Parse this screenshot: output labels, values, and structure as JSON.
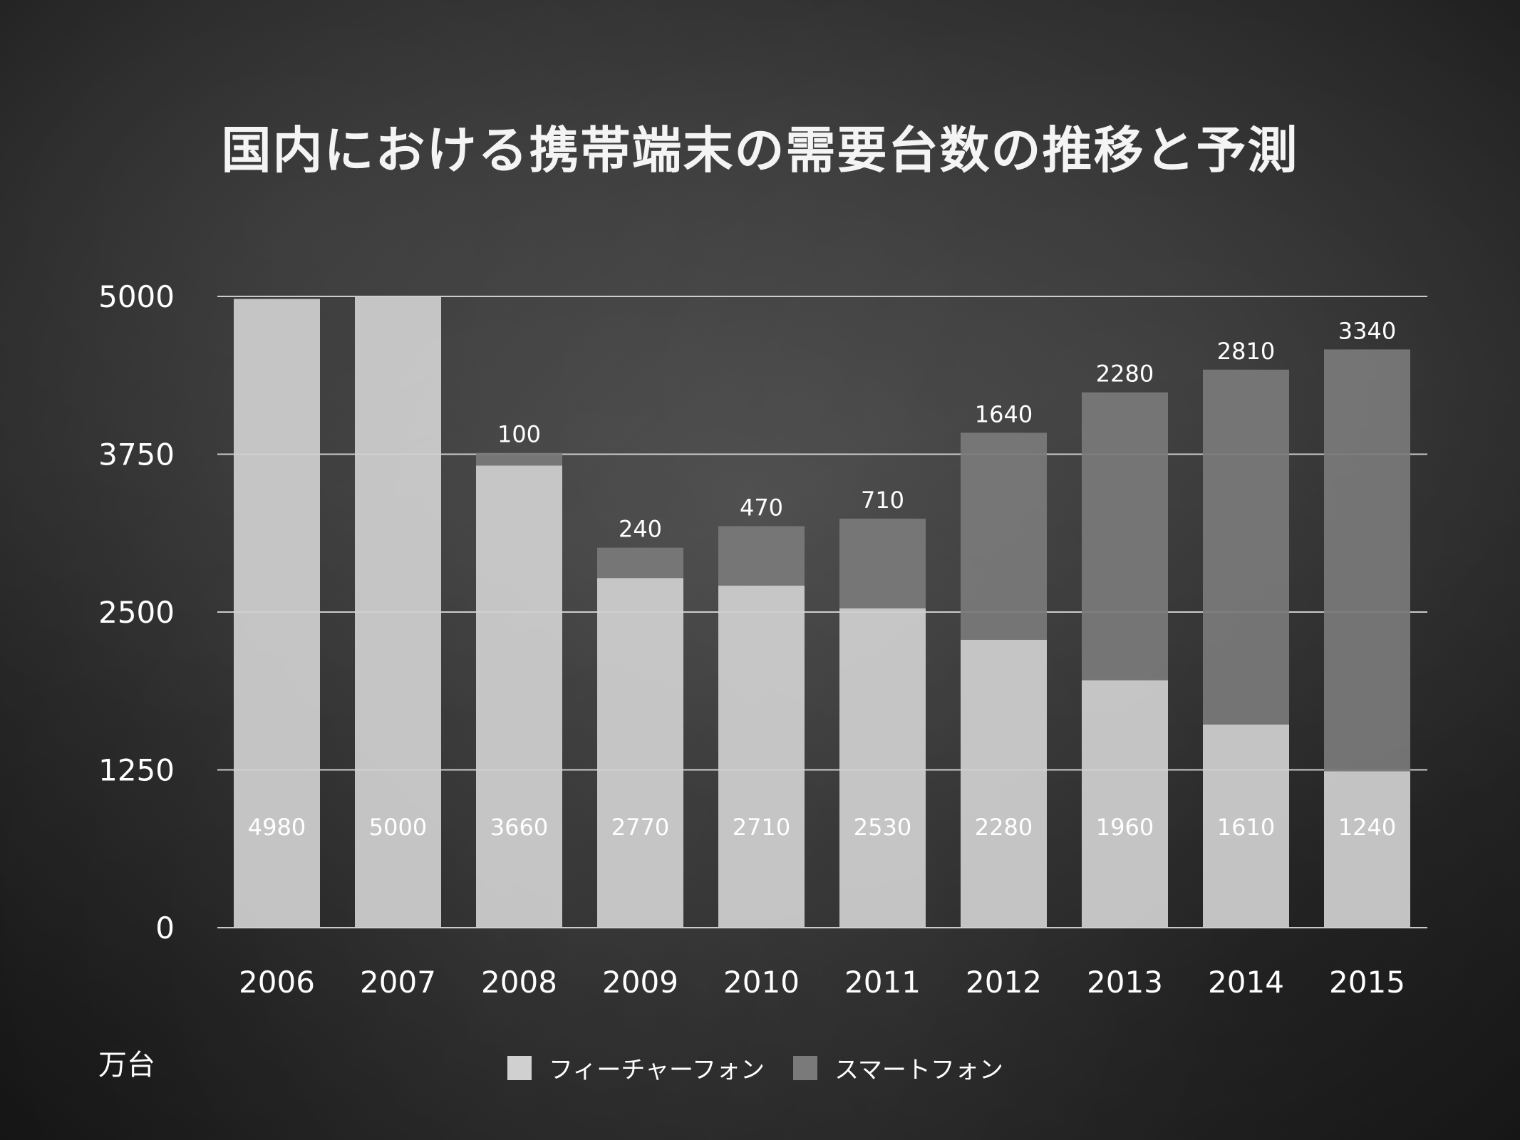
{
  "title": "国内における携帯端末の需要台数の推移と予測",
  "unit_label": "万台",
  "colors": {
    "feature_phone": "#d0d0d0",
    "smartphone": "#7a7a7a",
    "gridline": "#e6e6e6",
    "text": "#ffffff"
  },
  "chart_data": {
    "type": "bar",
    "stacked": true,
    "title": "国内における携帯端末の需要台数の推移と予測",
    "xlabel": "",
    "ylabel": "万台",
    "categories": [
      "2006",
      "2007",
      "2008",
      "2009",
      "2010",
      "2011",
      "2012",
      "2013",
      "2014",
      "2015"
    ],
    "series": [
      {
        "name": "フィーチャーフォン",
        "values": [
          4980,
          5000,
          3660,
          2770,
          2710,
          2530,
          2280,
          1960,
          1610,
          1240
        ]
      },
      {
        "name": "スマートフォン",
        "values": [
          0,
          0,
          100,
          240,
          470,
          710,
          1640,
          2280,
          2810,
          3340
        ]
      }
    ],
    "ylim": [
      0,
      5000
    ],
    "yticks": [
      0,
      1250,
      2500,
      3750,
      5000
    ],
    "grid": true,
    "legend_position": "bottom"
  }
}
